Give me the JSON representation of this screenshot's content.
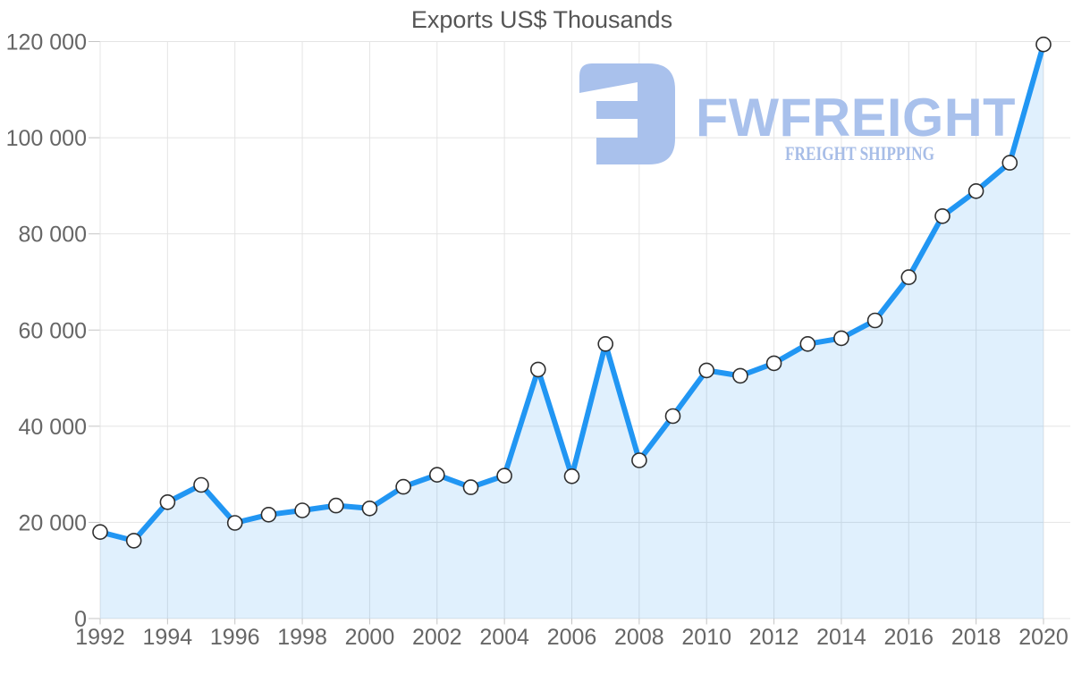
{
  "title": "Exports US$ Thousands",
  "logo": {
    "name": "FWFREIGHT",
    "tagline": "FREIGHT SHIPPING",
    "color": "#a9c1ec",
    "tagline_color": "#a7bde7"
  },
  "chart_data": {
    "type": "area",
    "title": "Exports US$ Thousands",
    "xlabel": "",
    "ylabel": "",
    "x": [
      1992,
      1993,
      1994,
      1995,
      1996,
      1997,
      1998,
      1999,
      2000,
      2001,
      2002,
      2003,
      2004,
      2005,
      2006,
      2007,
      2008,
      2009,
      2010,
      2011,
      2012,
      2013,
      2014,
      2015,
      2016,
      2017,
      2018,
      2019,
      2020
    ],
    "values": [
      18000,
      16200,
      24200,
      27800,
      19900,
      21600,
      22500,
      23500,
      22900,
      27400,
      29900,
      27300,
      29700,
      51800,
      29600,
      57100,
      32900,
      42100,
      51600,
      50500,
      53100,
      57100,
      58300,
      62000,
      71000,
      83700,
      88900,
      94800,
      119400
    ],
    "ylim": [
      0,
      120000
    ],
    "y_tick_step": 20000,
    "x_tick_step": 2,
    "grid": true,
    "legend": "none",
    "y_tick_format": "space-thousands",
    "line_color": "#2196f3",
    "area_color": "#2196f3",
    "area_opacity": 0.14,
    "marker_fill": "#ffffff",
    "marker_stroke": "#2f2f2f",
    "grid_color": "#e4e4e4",
    "tick_color": "#c4c4c4",
    "axis_label_color": "#666666",
    "title_color": "#555555"
  }
}
